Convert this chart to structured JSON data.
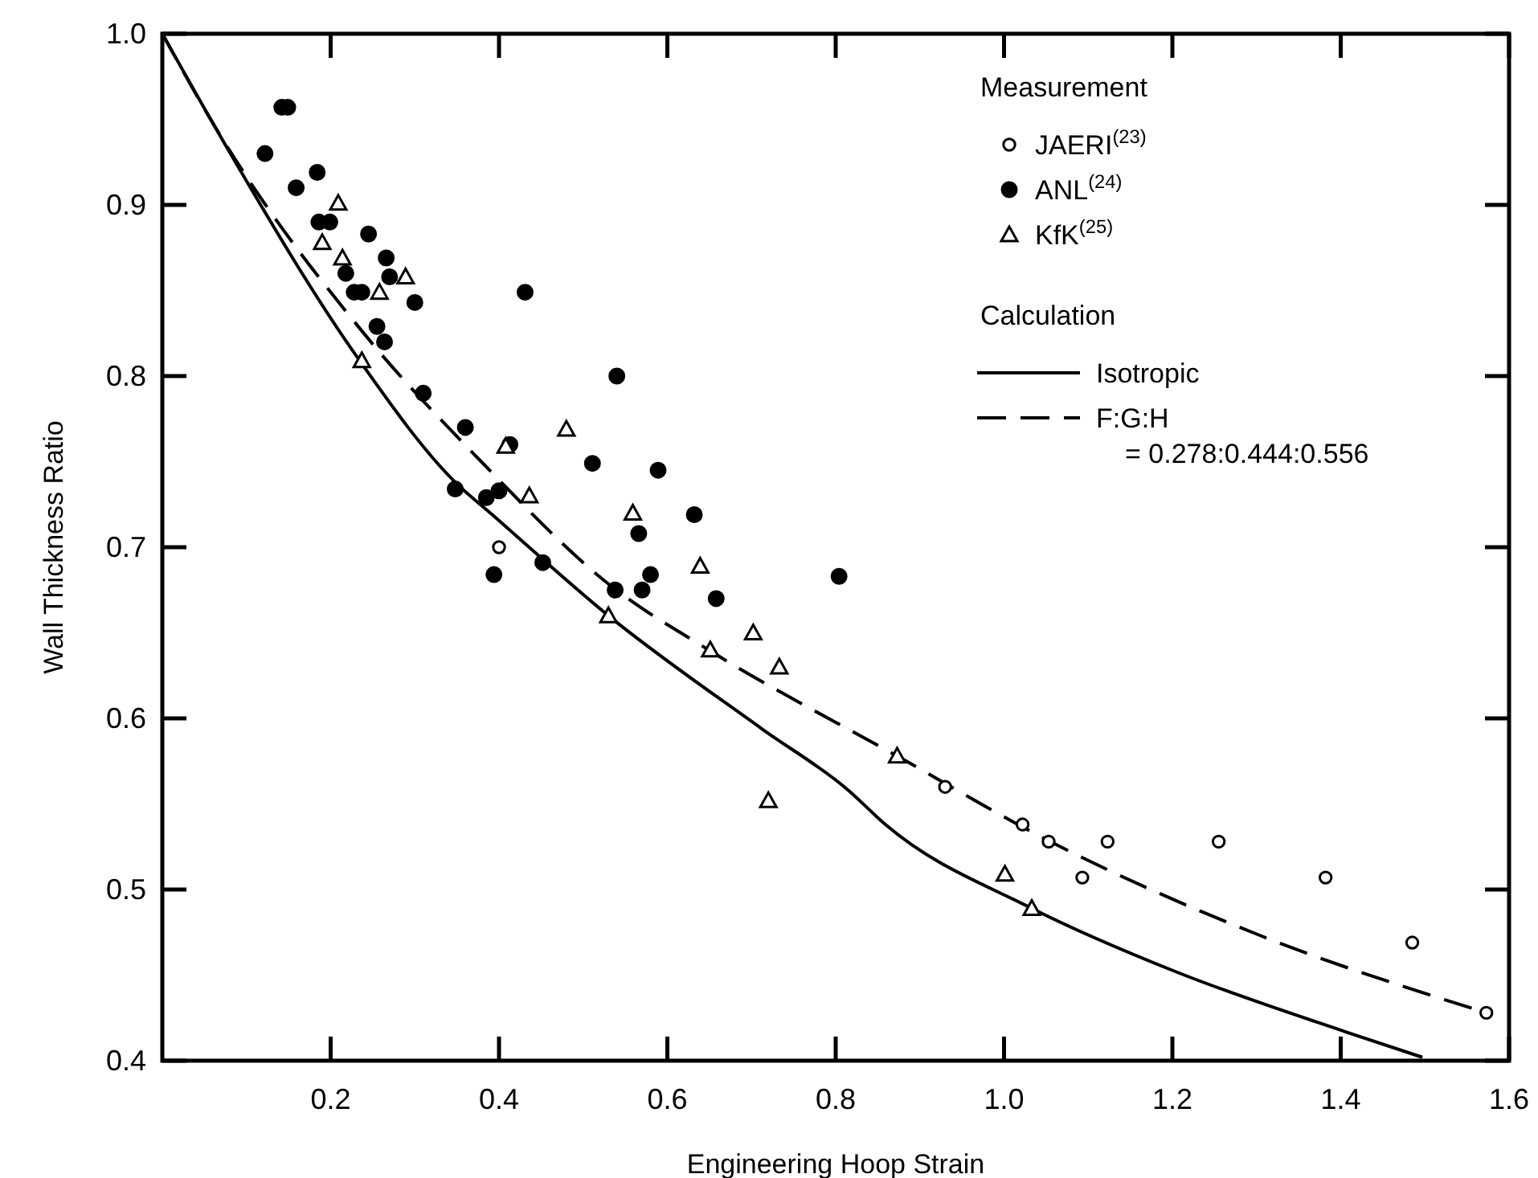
{
  "chart_data": {
    "type": "scatter",
    "xlabel": "Engineering Hoop Strain",
    "ylabel": "Wall Thickness Ratio",
    "xlim": [
      0,
      1.6
    ],
    "ylim": [
      0.4,
      1.0
    ],
    "xticks": [
      0.2,
      0.4,
      0.6,
      0.8,
      {
        "value": 1.0,
        "label": "1.0"
      },
      1.2,
      1.4,
      1.6
    ],
    "yticks": [
      0.4,
      0.5,
      0.6,
      0.7,
      0.8,
      0.9,
      {
        "value": 1.0,
        "label": "1.0"
      }
    ],
    "grid": false,
    "legend": "top right",
    "legend_title": "Measurement",
    "annotations": [
      "Calculation",
      "= 0.278:0.444:0.556"
    ],
    "series": [
      {
        "name": "JAERI$^{(23)}$",
        "color": "#000000",
        "marker": "circle",
        "x": [
          0.4,
          0.93,
          1.022,
          1.053,
          1.123,
          1.255,
          1.093,
          1.382,
          1.485,
          1.573
        ],
        "values": [
          0.7,
          0.56,
          0.538,
          0.528,
          0.528,
          0.528,
          0.507,
          0.507,
          0.469,
          0.428
        ]
      },
      {
        "name": "ANL$^{(24)}$",
        "color": "#000000",
        "marker": "circle",
        "x": [
          0.142,
          0.149,
          0.122,
          0.184,
          0.159,
          0.186,
          0.199,
          0.245,
          0.266,
          0.27,
          0.218,
          0.228,
          0.237,
          0.3,
          0.431,
          0.255,
          0.264,
          0.31,
          0.36,
          0.54,
          0.511,
          0.413,
          0.348,
          0.385,
          0.4,
          0.589,
          0.632,
          0.566,
          0.58,
          0.658,
          0.804,
          0.538,
          0.57,
          0.452,
          0.394
        ],
        "values": [
          0.957,
          0.957,
          0.93,
          0.919,
          0.91,
          0.89,
          0.89,
          0.883,
          0.869,
          0.858,
          0.86,
          0.849,
          0.849,
          0.843,
          0.849,
          0.829,
          0.82,
          0.79,
          0.77,
          0.8,
          0.749,
          0.76,
          0.734,
          0.729,
          0.733,
          0.745,
          0.719,
          0.708,
          0.684,
          0.67,
          0.683,
          0.675,
          0.675,
          0.691,
          0.684
        ]
      },
      {
        "name": "KfK$^{(25)}$",
        "color": "#000000",
        "marker": "triangle",
        "x": [
          0.209,
          0.19,
          0.214,
          0.289,
          0.258,
          0.237,
          0.48,
          0.408,
          0.436,
          0.559,
          0.639,
          0.53,
          0.651,
          0.702,
          0.733,
          0.873,
          0.72,
          1.001,
          1.033
        ],
        "values": [
          0.901,
          0.878,
          0.869,
          0.858,
          0.849,
          0.809,
          0.769,
          0.759,
          0.73,
          0.72,
          0.689,
          0.66,
          0.64,
          0.65,
          0.63,
          0.578,
          0.552,
          0.509,
          0.489
        ]
      },
      {
        "name": "Isotropic",
        "type": "line",
        "color": "#000000",
        "line_style": "solid",
        "marker": "none",
        "x": [
          0,
          0.075,
          0.233,
          0.348,
          0.392,
          0.53,
          0.712,
          0.815,
          0.859,
          1.033,
          1.204,
          1.405,
          1.497
        ],
        "values": [
          1,
          0.935,
          0.81,
          0.738,
          0.719,
          0.66,
          0.594,
          0.558,
          0.538,
          0.489,
          0.452,
          0.417,
          0.402
        ]
      },
      {
        "name": "F:G:H",
        "type": "line",
        "color": "#000000",
        "line_style": "dashed",
        "marker": "none",
        "x": [
          0,
          0.061,
          0.241,
          0.375,
          0.534,
          0.649,
          0.873,
          1.051,
          1.305,
          1.573
        ],
        "values": [
          1,
          0.947,
          0.824,
          0.752,
          0.677,
          0.64,
          0.578,
          0.529,
          0.473,
          0.428
        ]
      }
    ]
  }
}
